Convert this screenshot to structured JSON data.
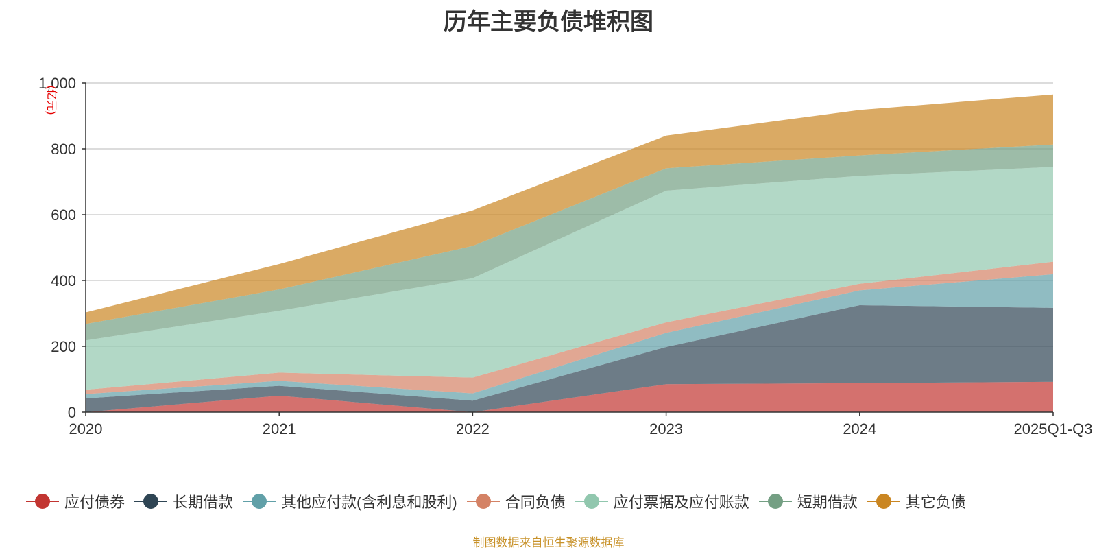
{
  "chart_data": {
    "type": "area",
    "stacked": true,
    "title": "历年主要负债堆积图",
    "ylabel": "(亿元)",
    "xlabel": "",
    "categories": [
      "2020",
      "2021",
      "2022",
      "2023",
      "2024",
      "2025Q1-Q3"
    ],
    "ylim": [
      0,
      1000
    ],
    "yticks": [
      0,
      200,
      400,
      600,
      800,
      1000
    ],
    "ytick_labels": [
      "0",
      "200",
      "400",
      "600",
      "800",
      "1,000"
    ],
    "grid": true,
    "legend_position": "bottom",
    "series": [
      {
        "name": "应付债券",
        "color": "#c23531",
        "values": [
          0,
          50,
          0,
          85,
          88,
          92
        ]
      },
      {
        "name": "长期借款",
        "color": "#2f4554",
        "values": [
          42,
          30,
          35,
          113,
          237,
          225
        ]
      },
      {
        "name": "其他应付款(含利息和股利)",
        "color": "#61a0a8",
        "values": [
          13,
          15,
          22,
          43,
          45,
          102
        ]
      },
      {
        "name": "合同负债",
        "color": "#d48265",
        "values": [
          13,
          25,
          48,
          32,
          20,
          38
        ]
      },
      {
        "name": "应付票据及应付账款",
        "color": "#91c7ae",
        "values": [
          150,
          188,
          302,
          400,
          328,
          288
        ]
      },
      {
        "name": "短期借款",
        "color": "#749f83",
        "values": [
          50,
          65,
          98,
          68,
          62,
          68
        ]
      },
      {
        "name": "其它负债",
        "color": "#ca8622",
        "values": [
          35,
          77,
          108,
          99,
          138,
          152
        ]
      }
    ],
    "source": "制图数据来自恒生聚源数据库"
  }
}
